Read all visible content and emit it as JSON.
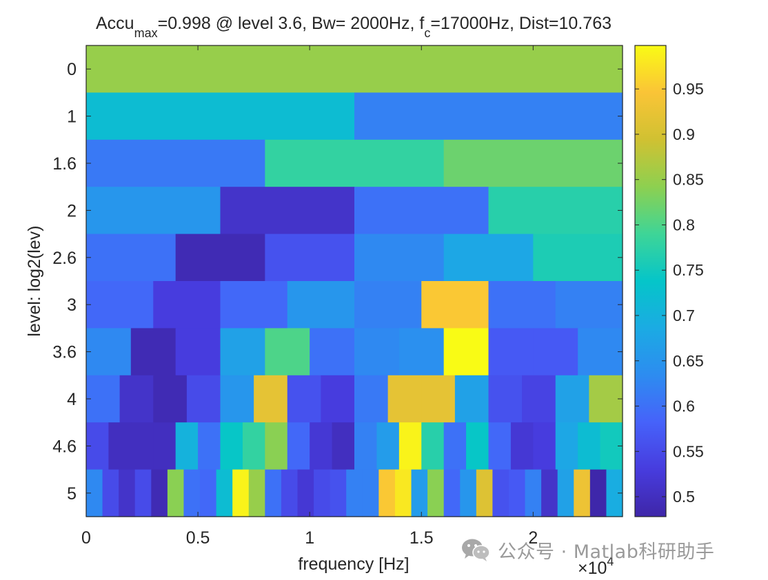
{
  "chart_data": {
    "type": "heatmap",
    "title": {
      "part1": "Accu",
      "sub1": "max",
      "part2": "=0.998 @ level 3.6, Bw= 2000Hz, f",
      "sub2": "c",
      "part3": "=17000Hz, Dist=10.763"
    },
    "xlabel": "frequency [Hz]",
    "ylabel": "level: log2(lev)",
    "x_exponent_label": "×10",
    "x_exponent_power": "4",
    "xlim": [
      0,
      24000
    ],
    "x_ticks": [
      {
        "value": 0,
        "label": "0"
      },
      {
        "value": 5000,
        "label": "0.5"
      },
      {
        "value": 10000,
        "label": "1"
      },
      {
        "value": 15000,
        "label": "1.5"
      },
      {
        "value": 20000,
        "label": "2"
      }
    ],
    "colorbar": {
      "clim": [
        0.478,
        0.998
      ],
      "ticks": [
        {
          "value": 0.5,
          "label": "0.5"
        },
        {
          "value": 0.55,
          "label": "0.55"
        },
        {
          "value": 0.6,
          "label": "0.6"
        },
        {
          "value": 0.65,
          "label": "0.65"
        },
        {
          "value": 0.7,
          "label": "0.7"
        },
        {
          "value": 0.75,
          "label": "0.75"
        },
        {
          "value": 0.8,
          "label": "0.8"
        },
        {
          "value": 0.85,
          "label": "0.85"
        },
        {
          "value": 0.9,
          "label": "0.9"
        },
        {
          "value": 0.95,
          "label": "0.95"
        }
      ]
    },
    "rows": [
      {
        "label": "0",
        "values": [
          0.85
        ]
      },
      {
        "label": "1",
        "values": [
          0.72,
          0.62
        ]
      },
      {
        "label": "1.6",
        "values": [
          0.61,
          0.78,
          0.82
        ]
      },
      {
        "label": "2",
        "values": [
          0.65,
          0.51,
          0.6,
          0.77
        ]
      },
      {
        "label": "2.6",
        "values": [
          0.6,
          0.49,
          0.56,
          0.63,
          0.68,
          0.76
        ]
      },
      {
        "label": "3",
        "values": [
          0.59,
          0.53,
          0.59,
          0.65,
          0.62,
          0.95,
          0.6,
          0.62
        ]
      },
      {
        "label": "3.6",
        "values": [
          0.63,
          0.49,
          0.53,
          0.67,
          0.8,
          0.6,
          0.63,
          0.64,
          0.998,
          0.57,
          0.57,
          0.63
        ]
      },
      {
        "label": "4",
        "values": [
          0.6,
          0.51,
          0.49,
          0.55,
          0.65,
          0.92,
          0.56,
          0.53,
          0.61,
          0.92,
          0.92,
          0.67,
          0.56,
          0.54,
          0.67,
          0.86
        ]
      },
      {
        "label": "4.6",
        "values": [
          0.55,
          0.5,
          0.5,
          0.5,
          0.7,
          0.6,
          0.74,
          0.78,
          0.84,
          0.59,
          0.52,
          0.5,
          0.62,
          0.66,
          0.99,
          0.77,
          0.6,
          0.74,
          0.59,
          0.52,
          0.53,
          0.68,
          0.72,
          0.75
        ]
      },
      {
        "label": "5",
        "values": [
          0.63,
          0.55,
          0.51,
          0.55,
          0.49,
          0.84,
          0.6,
          0.59,
          0.72,
          0.99,
          0.85,
          0.6,
          0.55,
          0.52,
          0.55,
          0.56,
          0.62,
          0.62,
          0.95,
          0.98,
          0.66,
          0.84,
          0.59,
          0.65,
          0.91,
          0.56,
          0.57,
          0.62,
          0.51,
          0.67,
          0.93,
          0.48,
          0.69
        ]
      }
    ],
    "colormap": "parula",
    "grid": false,
    "legend": "colorbar-right"
  },
  "watermark": {
    "icon": "wechat-icon",
    "text": "公众号 · Matlab科研助手"
  }
}
